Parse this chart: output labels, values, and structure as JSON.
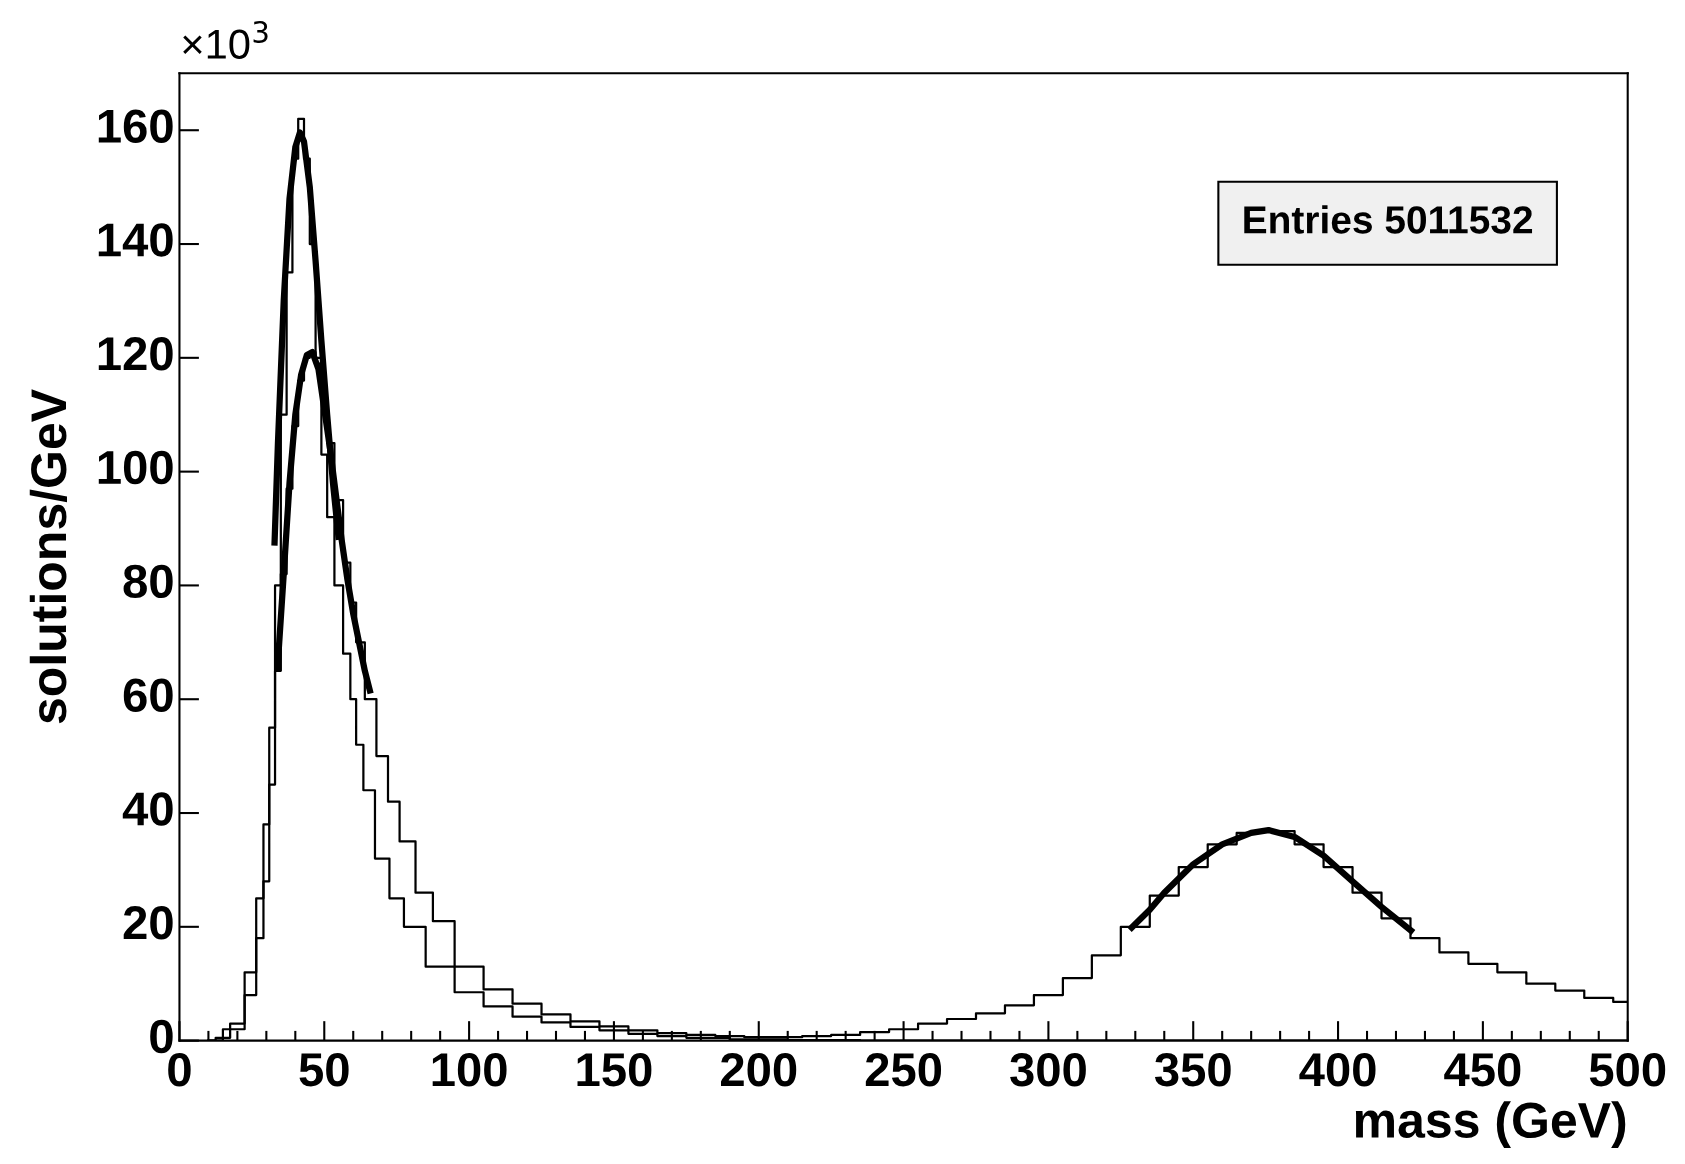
{
  "chart_data": {
    "type": "step",
    "xlabel": "mass (GeV)",
    "ylabel": "solutions/GeV",
    "annotations": [
      "×10$^{3}$",
      "Entries 5011532"
    ],
    "xlim": [
      0,
      500
    ],
    "xticks": [
      0,
      50,
      100,
      150,
      200,
      250,
      300,
      350,
      400,
      450,
      500
    ],
    "ylim": [
      0,
      170
    ],
    "yticks": [
      0,
      20,
      40,
      60,
      80,
      100,
      120,
      140,
      160
    ],
    "grid": false,
    "legend": false,
    "marker": "none",
    "line_style": "solid",
    "series": [
      {
        "color": "#000000",
        "x": [
          10,
          15,
          20,
          25,
          28,
          30,
          32,
          34,
          36,
          38,
          40,
          42,
          44,
          46,
          48,
          50,
          52,
          55,
          58,
          60,
          62,
          65,
          70,
          75,
          80,
          90,
          100,
          110,
          120,
          130,
          140,
          150,
          160,
          170,
          180,
          200,
          220,
          250,
          500
        ],
        "values": [
          0,
          0.5,
          3,
          12,
          25,
          38,
          55,
          80,
          110,
          135,
          155,
          162,
          155,
          140,
          120,
          103,
          92,
          80,
          68,
          60,
          52,
          44,
          32,
          25,
          20,
          13,
          8.5,
          6,
          4.2,
          3.2,
          2.4,
          1.8,
          1.2,
          0.8,
          0.5,
          0.2,
          0.1,
          0,
          0
        ]
      },
      {
        "color": "#000000",
        "x": [
          10,
          20,
          25,
          28,
          30,
          32,
          34,
          36,
          38,
          40,
          42,
          44,
          46,
          48,
          50,
          52,
          55,
          58,
          60,
          62,
          66,
          70,
          74,
          78,
          85,
          90,
          100,
          110,
          120,
          130,
          140,
          150,
          160,
          170,
          180,
          190,
          200,
          210,
          220,
          230,
          240,
          250,
          260,
          270,
          280,
          290,
          300,
          310,
          320,
          330,
          340,
          350,
          360,
          370,
          375,
          380,
          390,
          400,
          410,
          420,
          430,
          440,
          450,
          460,
          470,
          480,
          490,
          500
        ],
        "values": [
          0,
          2,
          8,
          18,
          28,
          45,
          65,
          82,
          97,
          108,
          116,
          120,
          121,
          119,
          113,
          105,
          95,
          84,
          77,
          70,
          60,
          50,
          42,
          35,
          26,
          21,
          13,
          9,
          6.5,
          4.6,
          3.4,
          2.5,
          1.8,
          1.3,
          1,
          0.8,
          0.6,
          0.6,
          0.8,
          1,
          1.5,
          2,
          3,
          3.8,
          4.8,
          6.2,
          8,
          11,
          15,
          20,
          25.5,
          30.5,
          34.5,
          36.5,
          37,
          36.8,
          34.5,
          30.5,
          26,
          21.5,
          18,
          15.5,
          13.5,
          12,
          10,
          8.8,
          7.5,
          6.8
        ]
      },
      {
        "type": "line",
        "color": "#000000",
        "x": [
          32.8,
          34,
          36,
          38,
          40,
          41.6,
          43,
          45,
          47,
          49,
          51,
          53,
          55
        ],
        "values": [
          87,
          105,
          130,
          148,
          157,
          159.6,
          158,
          150,
          137,
          123,
          110,
          98,
          88
        ]
      },
      {
        "type": "line",
        "color": "#000000",
        "x": [
          33.8,
          36,
          38,
          40,
          42,
          44,
          45.9,
          48,
          50,
          52,
          54,
          56,
          58,
          60,
          62,
          64,
          66
        ],
        "values": [
          65,
          82,
          98,
          110,
          117,
          120.5,
          121,
          118,
          111,
          104,
          96,
          88,
          81,
          75,
          70,
          65,
          61
        ]
      },
      {
        "type": "line",
        "color": "#000000",
        "x": [
          328,
          335,
          340,
          350,
          360,
          370,
          376,
          385,
          395,
          405,
          415,
          426
        ],
        "values": [
          19.5,
          23,
          26,
          31,
          34.5,
          36.5,
          37,
          35.8,
          32.5,
          28,
          23.5,
          19
        ]
      }
    ]
  }
}
